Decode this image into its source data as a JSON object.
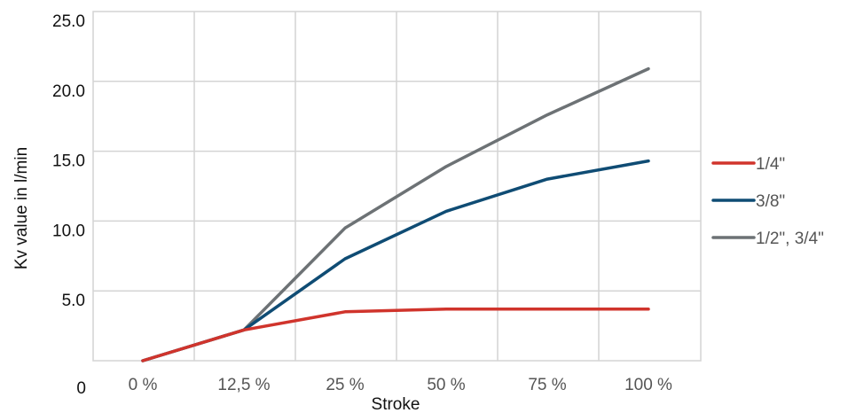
{
  "chart_data": {
    "type": "line",
    "categories": [
      "0 %",
      "12,5 %",
      "25 %",
      "50 %",
      "75 %",
      "100 %"
    ],
    "y_tick_labels": [
      "0",
      "5.0",
      "10.0",
      "15.0",
      "20.0",
      "25.0"
    ],
    "y_ticks": [
      0,
      5,
      10,
      15,
      20,
      25
    ],
    "ylim": [
      0,
      25
    ],
    "xlabel": "Stroke",
    "ylabel": "Kv value in l/min",
    "grid": true,
    "legend_position": "right",
    "series": [
      {
        "name": "1/4\"",
        "color": "#d0342c",
        "values": [
          0,
          2.2,
          3.5,
          3.7,
          3.7,
          3.7
        ]
      },
      {
        "name": "3/8\"",
        "color": "#0f4c74",
        "values": [
          0,
          2.2,
          7.3,
          10.7,
          13,
          14.3
        ]
      },
      {
        "name": "1/2\", 3/4\"",
        "color": "#6d7275",
        "values": [
          0,
          2.2,
          9.5,
          13.9,
          17.6,
          20.9
        ]
      }
    ]
  }
}
